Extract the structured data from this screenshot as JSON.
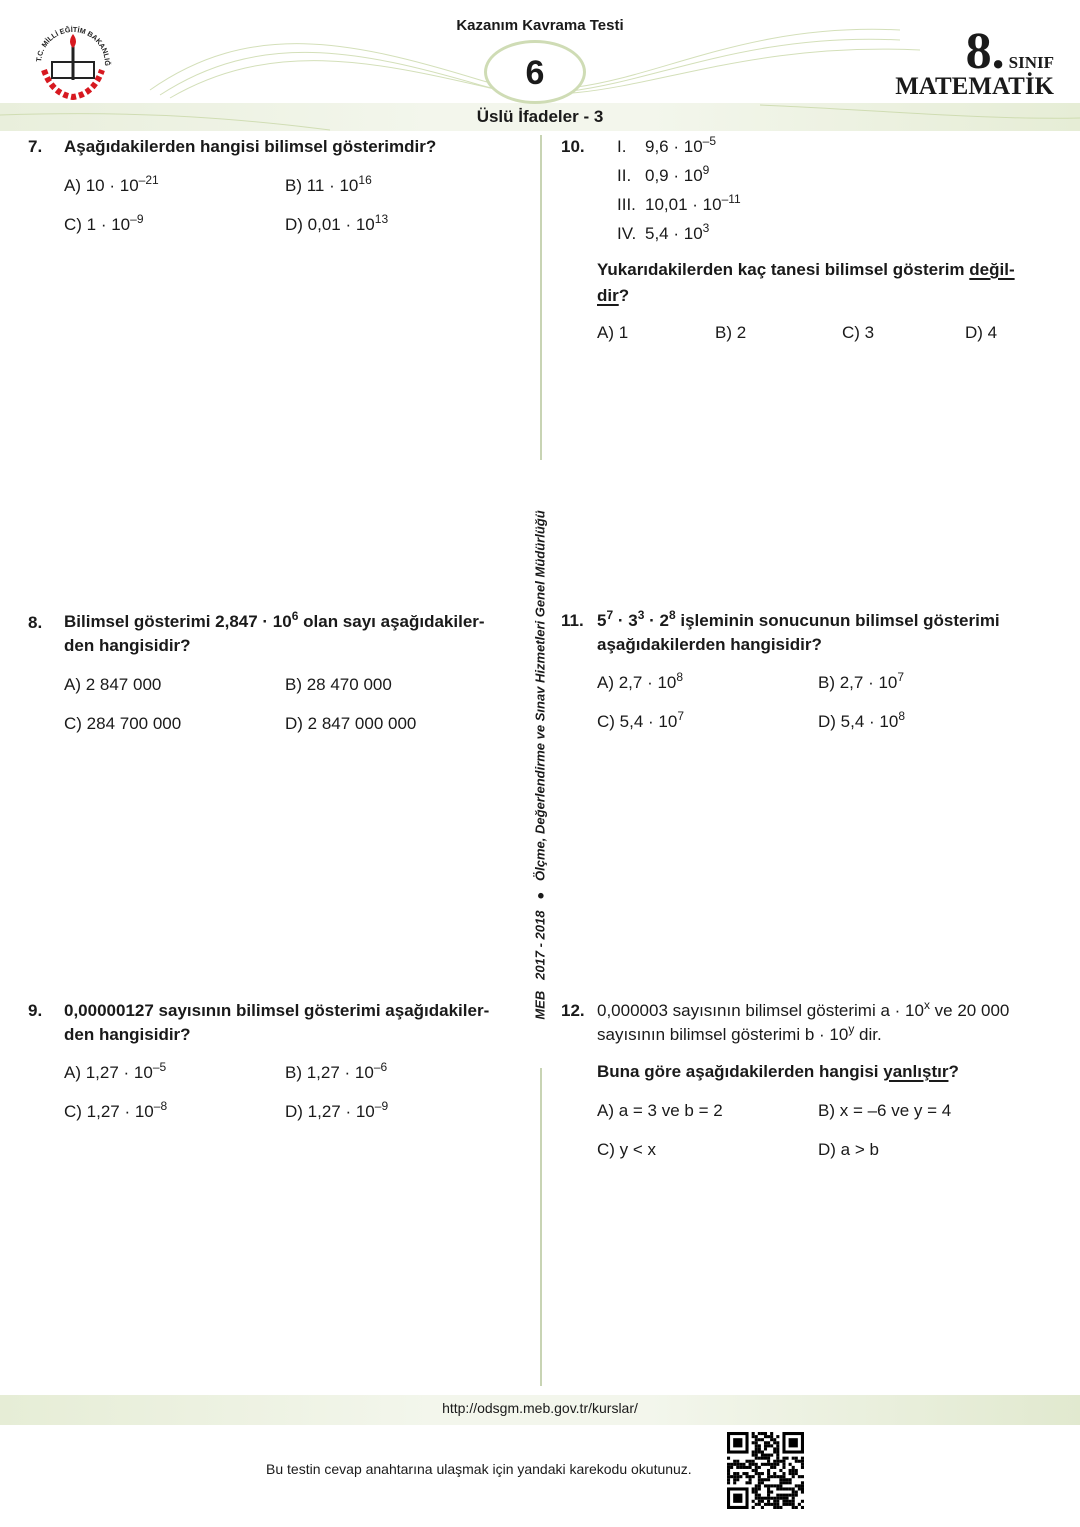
{
  "header": {
    "ministry_logo_text": "T.C. MİLLİ EĞİTİM BAKANLIĞI",
    "test_type": "Kazanım Kavrama Testi",
    "test_number": "6",
    "topic": "Üslü İfadeler - 3",
    "grade_number": "8",
    "grade_dot": ".",
    "grade_label": "SINIF",
    "subject": "MATEMATİK"
  },
  "colors": {
    "accent_green": "#cfdcb5",
    "logo_red": "#d71920"
  },
  "side_text": {
    "meb": "MEB",
    "year": "2017 - 2018",
    "bullet": "●",
    "org": "Ölçme, Değerlendirme ve Sınav Hizmetleri Genel Müdürlüğü"
  },
  "q7": {
    "number": "7.",
    "stem": "Aşağıdakilerden hangisi bilimsel gösterimdir?",
    "options": [
      {
        "base": "A) 10 · 10",
        "exp": "–21"
      },
      {
        "base": "B) 11 · 10",
        "exp": "16"
      },
      {
        "base": "C) 1 · 10",
        "exp": "–9"
      },
      {
        "base": "D) 0,01 · 10",
        "exp": "13"
      }
    ]
  },
  "q8": {
    "number": "8.",
    "l1a": "Bilimsel gösterimi 2,847 · 10",
    "l1exp": "6",
    "l1b": " olan sayı aşağıdakiler-",
    "l2": "den hangisidir?",
    "options": [
      "A) 2 847 000",
      "B) 28 470 000",
      "C) 284 700 000",
      "D) 2 847 000 000"
    ]
  },
  "q9": {
    "number": "9.",
    "l1": "0,00000127 sayısının bilimsel gösterimi aşağıdakiler-",
    "l2": "den hangisidir?",
    "options": [
      {
        "base": "A) 1,27 · 10",
        "exp": "–5"
      },
      {
        "base": "B) 1,27 · 10",
        "exp": "–6"
      },
      {
        "base": "C) 1,27 · 10",
        "exp": "–8"
      },
      {
        "base": "D) 1,27 · 10",
        "exp": "–9"
      }
    ]
  },
  "q10": {
    "number": "10.",
    "items": [
      {
        "roman": "I.",
        "base": "9,6 · 10",
        "exp": "–5"
      },
      {
        "roman": "II.",
        "base": "0,9 · 10",
        "exp": "9"
      },
      {
        "roman": "III.",
        "base": "10,01 · 10",
        "exp": "–11"
      },
      {
        "roman": "IV.",
        "base": "5,4 · 10",
        "exp": "3"
      }
    ],
    "q_a": "Yukarıdakilerden kaç tanesi bilimsel gösterim ",
    "q_u1": "değil-",
    "q_u2": "dir",
    "q_end": "?",
    "options": [
      "A) 1",
      "B) 2",
      "C) 3",
      "D) 4"
    ]
  },
  "q11": {
    "number": "11.",
    "b1": "5",
    "e1": "7",
    "b2": " · 3",
    "e2": "3",
    "b3": " · 2",
    "e3": "8",
    "rest": " işleminin sonucunun bilimsel gösterimi",
    "l2": "aşağıdakilerden hangisidir?",
    "options": [
      {
        "base": "A) 2,7 · 10",
        "exp": "8"
      },
      {
        "base": "B) 2,7 · 10",
        "exp": "7"
      },
      {
        "base": "C) 5,4 · 10",
        "exp": "7"
      },
      {
        "base": "D) 5,4 · 10",
        "exp": "8"
      }
    ]
  },
  "q12": {
    "number": "12.",
    "l1a": "0,000003 sayısının bilimsel gösterimi a · 10",
    "l1exp": "x",
    "l1b": " ve 20 000",
    "l2a": "sayısının bilimsel gösterimi b · 10",
    "l2exp": "y",
    "l2b": " dir.",
    "q_a": "Buna göre aşağıdakilerden hangisi ",
    "q_u": "yanlıştır",
    "q_end": "?",
    "options": [
      "A) a = 3 ve b = 2",
      "B) x = –6 ve y = 4",
      "C) y < x",
      "D) a > b"
    ]
  },
  "footer": {
    "url": "http://odsgm.meb.gov.tr/kurslar/",
    "note": "Bu testin cevap anahtarına ulaşmak için yandaki karekodu okutunuz."
  }
}
